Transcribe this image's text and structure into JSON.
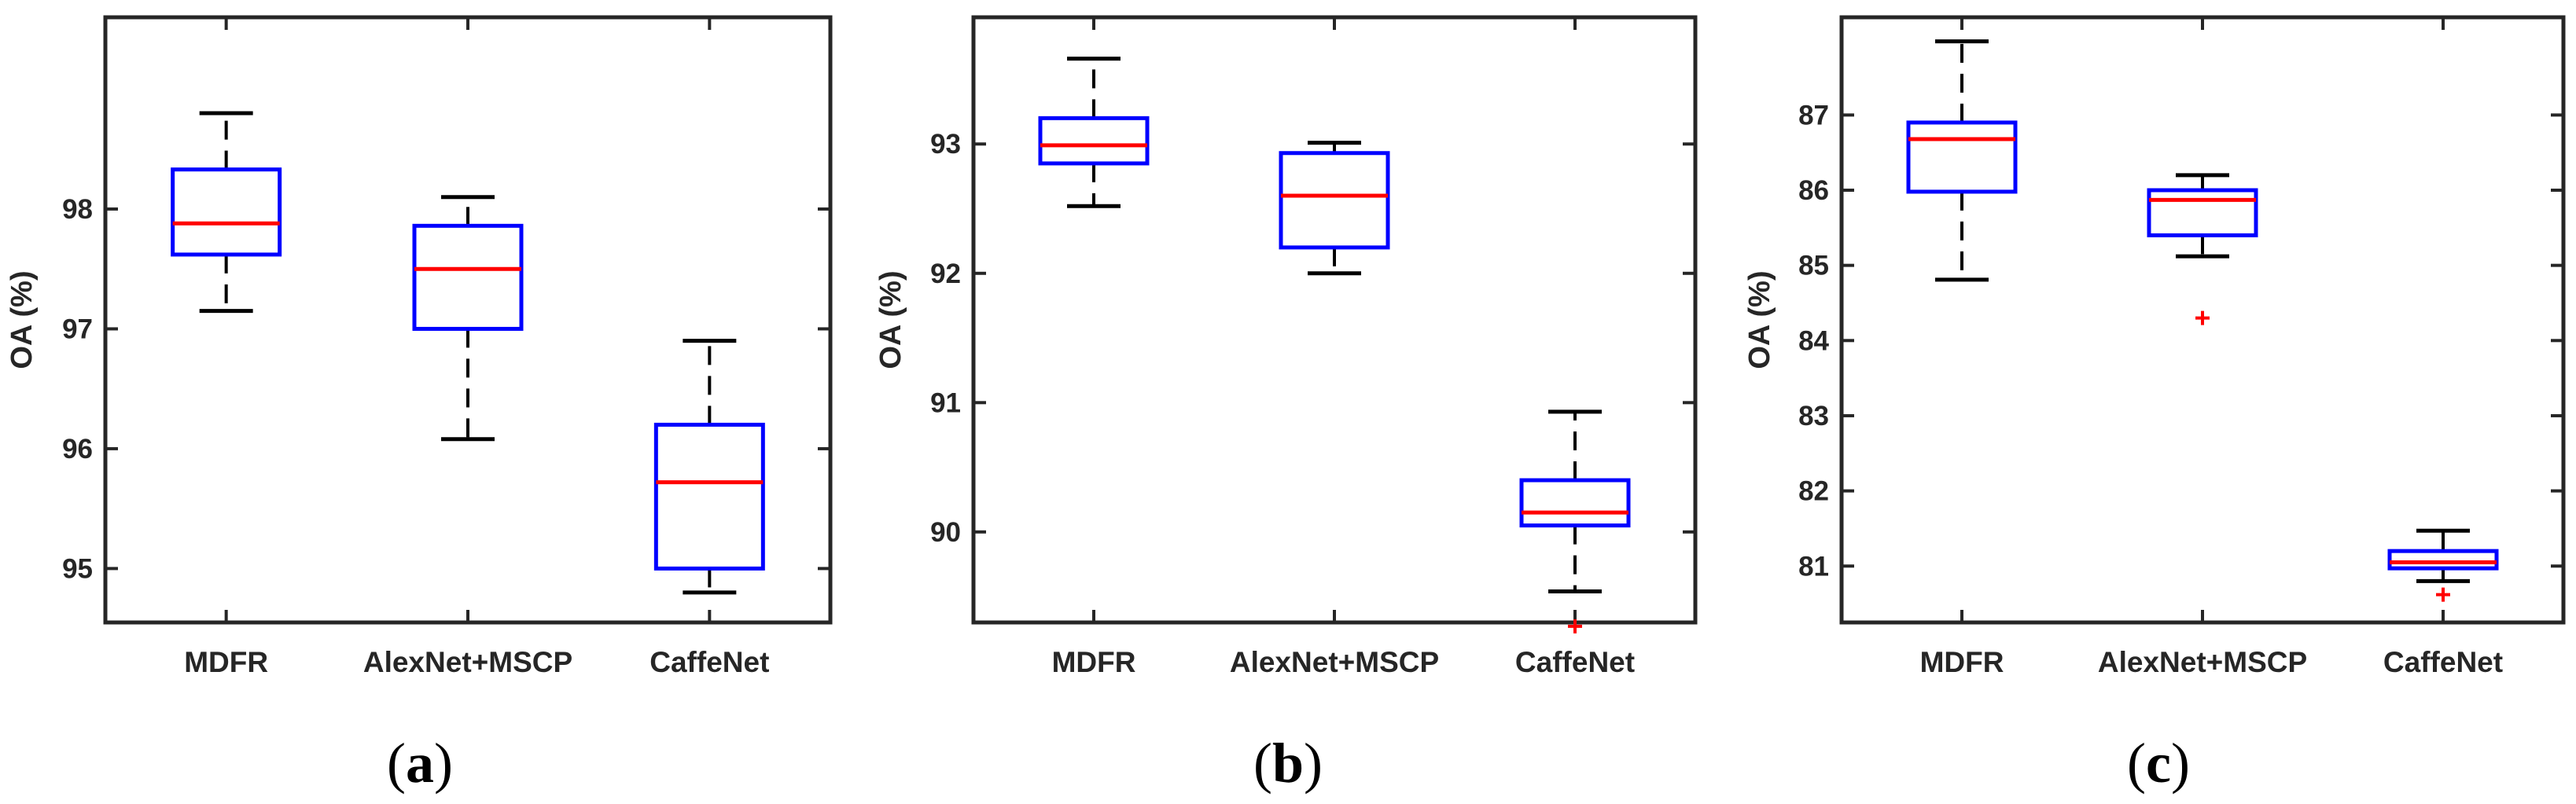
{
  "chart_data": [
    {
      "type": "boxplot",
      "panel_label": {
        "open": "(",
        "letter": "a",
        "close": ")"
      },
      "ylabel": "OA (%)",
      "ylim": [
        94.55,
        99.6
      ],
      "yticks": [
        95,
        96,
        97,
        98
      ],
      "categories": [
        "MDFR",
        "AlexNet+MSCP",
        "CaffeNet"
      ],
      "boxes": [
        {
          "whisker_low": 97.15,
          "q1": 97.62,
          "median": 97.88,
          "q3": 98.33,
          "whisker_high": 98.8,
          "outliers": []
        },
        {
          "whisker_low": 96.08,
          "q1": 97.0,
          "median": 97.5,
          "q3": 97.86,
          "whisker_high": 98.1,
          "outliers": []
        },
        {
          "whisker_low": 94.8,
          "q1": 95.0,
          "median": 95.72,
          "q3": 96.2,
          "whisker_high": 96.9,
          "outliers": []
        }
      ]
    },
    {
      "type": "boxplot",
      "panel_label": {
        "open": "(",
        "letter": "b",
        "close": ")"
      },
      "ylabel": "OA (%)",
      "ylim": [
        89.3,
        93.98
      ],
      "yticks": [
        90,
        91,
        92,
        93
      ],
      "categories": [
        "MDFR",
        "AlexNet+MSCP",
        "CaffeNet"
      ],
      "boxes": [
        {
          "whisker_low": 92.52,
          "q1": 92.85,
          "median": 92.99,
          "q3": 93.2,
          "whisker_high": 93.66,
          "outliers": []
        },
        {
          "whisker_low": 92.0,
          "q1": 92.2,
          "median": 92.6,
          "q3": 92.93,
          "whisker_high": 93.01,
          "outliers": []
        },
        {
          "whisker_low": 89.54,
          "q1": 90.05,
          "median": 90.15,
          "q3": 90.4,
          "whisker_high": 90.93,
          "outliers": [
            89.27
          ]
        }
      ]
    },
    {
      "type": "boxplot",
      "panel_label": {
        "open": "(",
        "letter": "c",
        "close": ")"
      },
      "ylabel": "OA (%)",
      "ylim": [
        80.25,
        88.3
      ],
      "yticks": [
        81,
        82,
        83,
        84,
        85,
        86,
        87
      ],
      "categories": [
        "MDFR",
        "AlexNet+MSCP",
        "CaffeNet"
      ],
      "boxes": [
        {
          "whisker_low": 84.81,
          "q1": 85.98,
          "median": 86.68,
          "q3": 86.9,
          "whisker_high": 87.98,
          "outliers": []
        },
        {
          "whisker_low": 85.12,
          "q1": 85.4,
          "median": 85.87,
          "q3": 86.0,
          "whisker_high": 86.2,
          "outliers": [
            84.3
          ]
        },
        {
          "whisker_low": 80.8,
          "q1": 80.97,
          "median": 81.05,
          "q3": 81.2,
          "whisker_high": 81.47,
          "outliers": [
            80.62
          ]
        }
      ]
    }
  ]
}
